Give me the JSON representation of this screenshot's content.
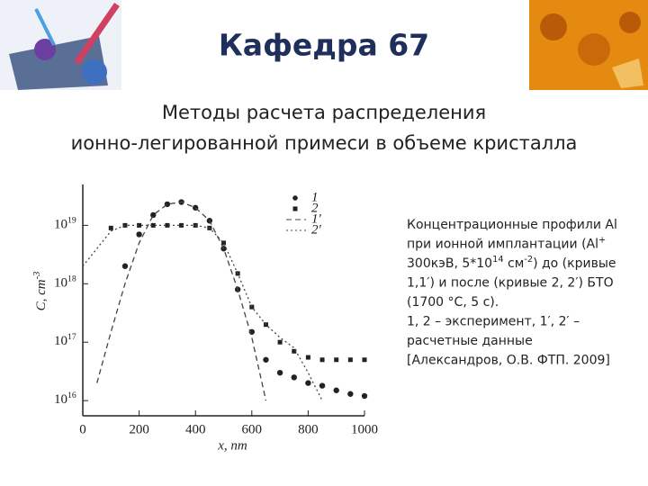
{
  "header": {
    "title": "Кафедра 67",
    "subtitle": [
      "Методы расчета распределения",
      "ионно-легированной примеси в объеме кристалла"
    ]
  },
  "chart_data": {
    "type": "line",
    "log_scale_y": true,
    "xlabel": "x, nm",
    "ylabel": [
      "C, cm",
      {
        "sup": "-3"
      }
    ],
    "x": [
      0,
      50,
      100,
      150,
      200,
      250,
      300,
      350,
      400,
      450,
      500,
      550,
      600,
      650,
      700,
      750,
      800,
      850,
      900,
      950,
      1000
    ],
    "xlim": [
      0,
      1000
    ],
    "xticks": [
      0,
      200,
      400,
      600,
      800,
      1000
    ],
    "ylim": [
      5500000000000000.0,
      5e+19
    ],
    "yticks": [
      {
        "value": 1e+16,
        "label": "10",
        "sup": "16"
      },
      {
        "value": 1e+17,
        "label": "10",
        "sup": "17"
      },
      {
        "value": 1e+18,
        "label": "10",
        "sup": "18"
      },
      {
        "value": 1e+19,
        "label": "10",
        "sup": "19"
      }
    ],
    "series": [
      {
        "name": "1",
        "color": "#222222",
        "marker": "circle",
        "line": "none",
        "values": [
          null,
          null,
          null,
          2e+18,
          7e+18,
          1.5e+19,
          2.3e+19,
          2.5e+19,
          2e+19,
          1.2e+19,
          4e+18,
          8e+17,
          1.5e+17,
          5e+16,
          3e+16,
          2.5e+16,
          2e+16,
          1.8e+16,
          1.5e+16,
          1.3e+16,
          1.2e+16
        ]
      },
      {
        "name": "2",
        "color": "#222222",
        "marker": "square",
        "line": "none",
        "values": [
          null,
          null,
          9e+18,
          1e+19,
          1e+19,
          1e+19,
          1e+19,
          1e+19,
          1e+19,
          9e+18,
          5e+18,
          1.5e+18,
          4e+17,
          2e+17,
          1e+17,
          7e+16,
          5.5e+16,
          5e+16,
          5e+16,
          5e+16,
          5e+16
        ]
      },
      {
        "name": "1′",
        "color": "#444444",
        "marker": "none",
        "line": "dashed",
        "values": [
          null,
          2e+16,
          1.5e+17,
          1e+18,
          5e+18,
          1.5e+19,
          2.3e+19,
          2.5e+19,
          2e+19,
          1.2e+19,
          4e+18,
          8e+17,
          1.2e+17,
          1e+16,
          null,
          null,
          null,
          null,
          null,
          null,
          null
        ]
      },
      {
        "name": "2′",
        "color": "#444444",
        "marker": "none",
        "line": "dotted",
        "values": [
          2e+18,
          4e+18,
          8e+18,
          1e+19,
          1e+19,
          1e+19,
          1e+19,
          1e+19,
          1e+19,
          9e+18,
          5e+18,
          1.5e+18,
          4e+17,
          2e+17,
          1.2e+17,
          8e+16,
          3e+16,
          1e+16,
          null,
          null,
          null
        ]
      }
    ]
  },
  "caption": {
    "lines": [
      [
        "Концентрационные профили Al"
      ],
      [
        "при ионной имплантации (Al",
        {
          "sup": "+"
        }
      ],
      [
        "300кэВ, 5*10",
        {
          "sup": "14"
        },
        " см",
        {
          "sup": "-2"
        },
        ") до (кривые"
      ],
      [
        "1,1′) и после (кривые 2, 2′) БТО"
      ],
      [
        "(1700 °С, 5 с)."
      ],
      [
        "1, 2 – эксперимент, 1′, 2′ –"
      ],
      [
        "расчетные данные"
      ],
      [
        "[Александров, О.В. ФТП. 2009]"
      ]
    ]
  }
}
